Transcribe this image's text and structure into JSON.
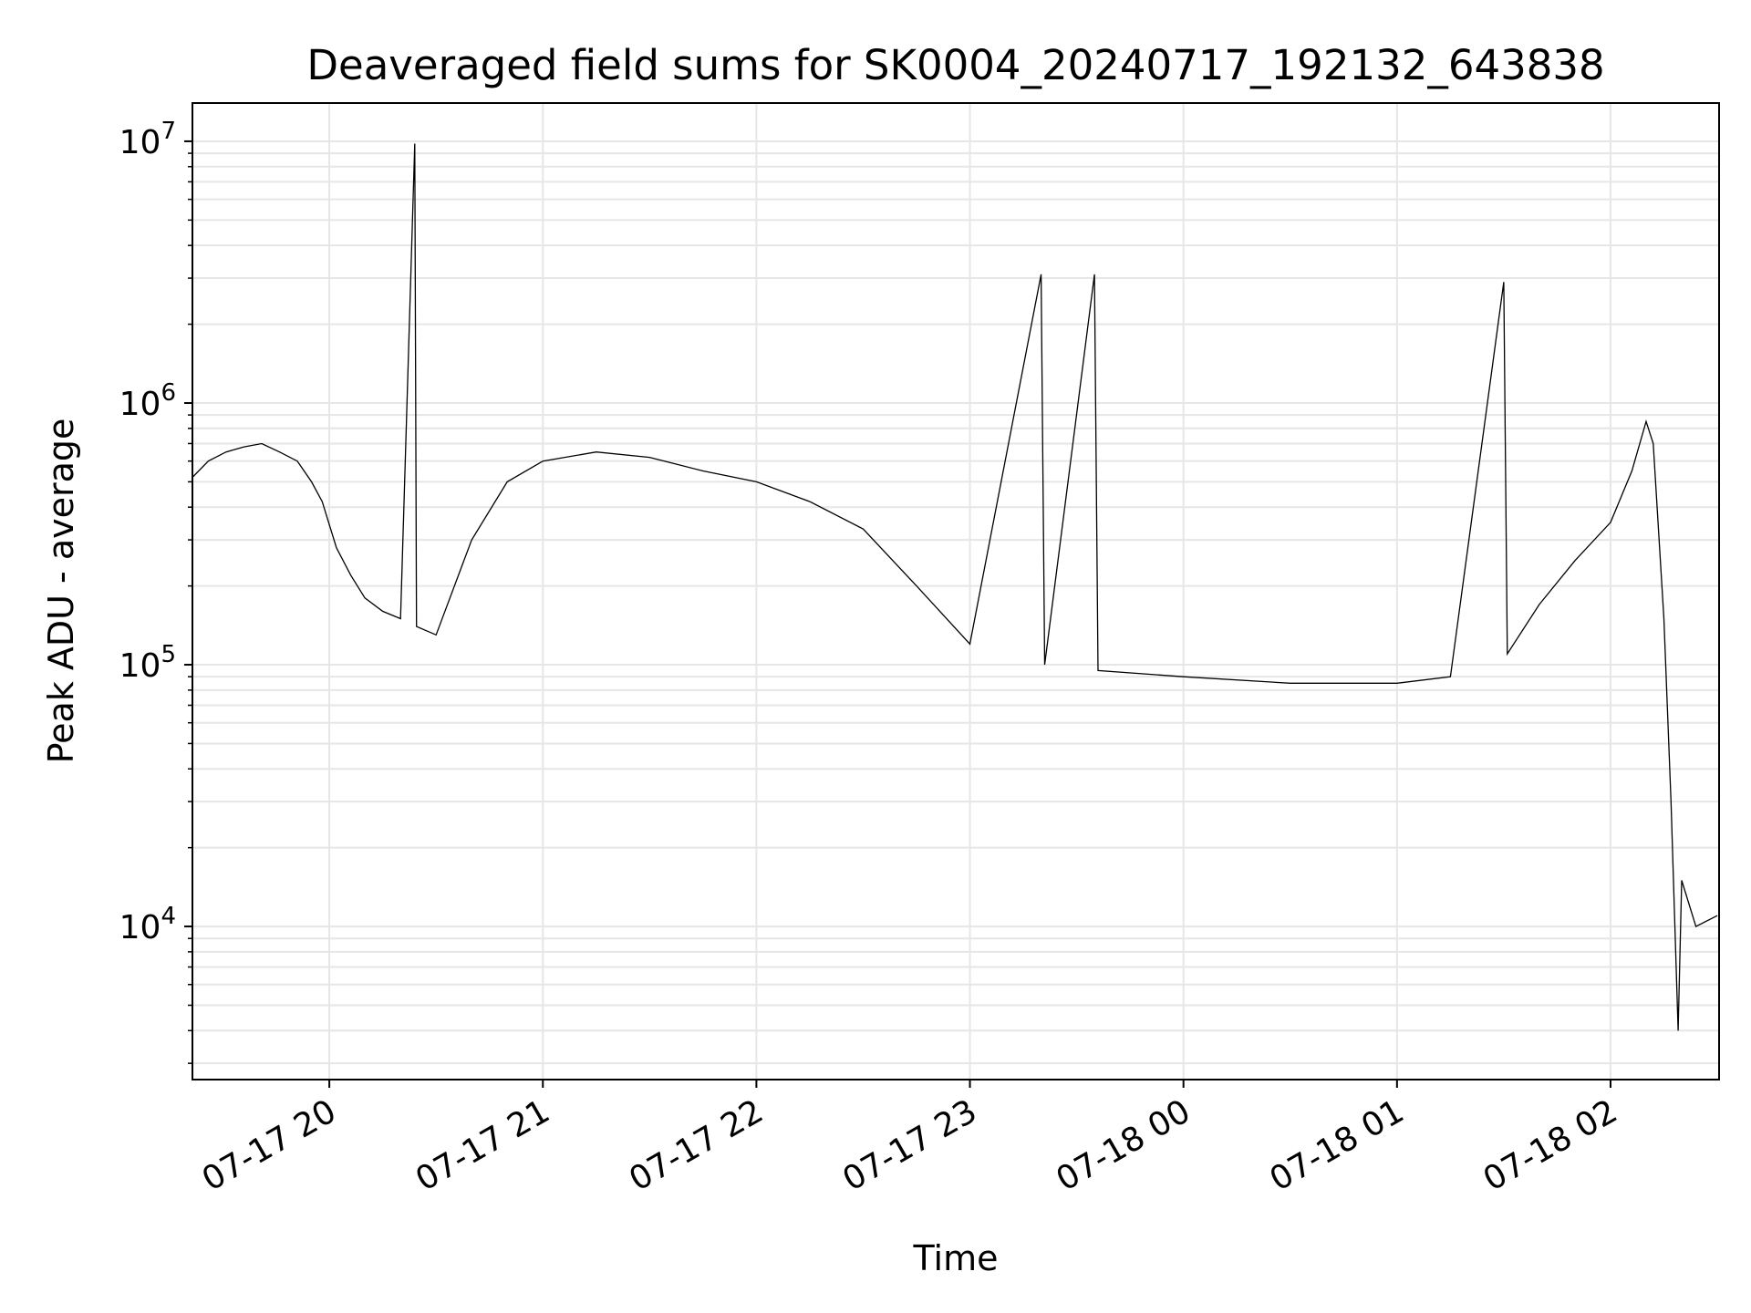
{
  "chart_data": {
    "type": "line",
    "title": "Deaveraged field sums for SK0004_20240717_192132_643838",
    "xlabel": "Time",
    "ylabel": "Peak ADU - average",
    "yscale": "log",
    "ylim": [
      2600,
      14000000
    ],
    "xlim": [
      "2024-07-17 19:21:32",
      "2024-07-18 02:30:30"
    ],
    "x_ticks": [
      {
        "time": "2024-07-17 20:00",
        "label": "07-17 20"
      },
      {
        "time": "2024-07-17 21:00",
        "label": "07-17 21"
      },
      {
        "time": "2024-07-17 22:00",
        "label": "07-17 22"
      },
      {
        "time": "2024-07-17 23:00",
        "label": "07-17 23"
      },
      {
        "time": "2024-07-18 00:00",
        "label": "07-18 00"
      },
      {
        "time": "2024-07-18 01:00",
        "label": "07-18 01"
      },
      {
        "time": "2024-07-18 02:00",
        "label": "07-18 02"
      }
    ],
    "y_ticks": [
      {
        "value": 10000,
        "base": "10",
        "exp": "4"
      },
      {
        "value": 100000,
        "base": "10",
        "exp": "5"
      },
      {
        "value": 1000000,
        "base": "10",
        "exp": "6"
      },
      {
        "value": 10000000,
        "base": "10",
        "exp": "7"
      }
    ],
    "grid": true,
    "line_color": "#000000",
    "series": [
      {
        "points": [
          [
            "2024-07-17 19:21:32",
            520000
          ],
          [
            "2024-07-17 19:26:00",
            600000
          ],
          [
            "2024-07-17 19:31:00",
            650000
          ],
          [
            "2024-07-17 19:36:00",
            680000
          ],
          [
            "2024-07-17 19:41:00",
            700000
          ],
          [
            "2024-07-17 19:46:00",
            650000
          ],
          [
            "2024-07-17 19:51:00",
            600000
          ],
          [
            "2024-07-17 19:55:00",
            500000
          ],
          [
            "2024-07-17 19:58:00",
            420000
          ],
          [
            "2024-07-17 20:02:00",
            280000
          ],
          [
            "2024-07-17 20:06:00",
            220000
          ],
          [
            "2024-07-17 20:10:00",
            180000
          ],
          [
            "2024-07-17 20:15:00",
            160000
          ],
          [
            "2024-07-17 20:20:00",
            150000
          ],
          [
            "2024-07-17 20:24:00",
            9800000
          ],
          [
            "2024-07-17 20:24:30",
            140000
          ],
          [
            "2024-07-17 20:30:00",
            130000
          ],
          [
            "2024-07-17 20:40:00",
            300000
          ],
          [
            "2024-07-17 20:50:00",
            500000
          ],
          [
            "2024-07-17 21:00:00",
            600000
          ],
          [
            "2024-07-17 21:15:00",
            650000
          ],
          [
            "2024-07-17 21:30:00",
            620000
          ],
          [
            "2024-07-17 21:45:00",
            550000
          ],
          [
            "2024-07-17 22:00:00",
            500000
          ],
          [
            "2024-07-17 22:15:00",
            420000
          ],
          [
            "2024-07-17 22:30:00",
            330000
          ],
          [
            "2024-07-17 22:45:00",
            200000
          ],
          [
            "2024-07-17 23:00:00",
            120000
          ],
          [
            "2024-07-17 23:20:00",
            3100000
          ],
          [
            "2024-07-17 23:21:00",
            100000
          ],
          [
            "2024-07-17 23:35:00",
            3100000
          ],
          [
            "2024-07-17 23:36:00",
            95000
          ],
          [
            "2024-07-18 00:00:00",
            90000
          ],
          [
            "2024-07-18 00:30:00",
            85000
          ],
          [
            "2024-07-18 00:45:00",
            85000
          ],
          [
            "2024-07-18 01:00:00",
            85000
          ],
          [
            "2024-07-18 01:15:00",
            90000
          ],
          [
            "2024-07-18 01:30:00",
            2900000
          ],
          [
            "2024-07-18 01:31:00",
            110000
          ],
          [
            "2024-07-18 01:40:00",
            170000
          ],
          [
            "2024-07-18 01:50:00",
            250000
          ],
          [
            "2024-07-18 02:00:00",
            350000
          ],
          [
            "2024-07-18 02:06:00",
            550000
          ],
          [
            "2024-07-18 02:10:00",
            850000
          ],
          [
            "2024-07-18 02:12:00",
            700000
          ],
          [
            "2024-07-18 02:15:00",
            150000
          ],
          [
            "2024-07-18 02:17:00",
            30000
          ],
          [
            "2024-07-18 02:19:00",
            4000
          ],
          [
            "2024-07-18 02:20:00",
            15000
          ],
          [
            "2024-07-18 02:24:00",
            10000
          ],
          [
            "2024-07-18 02:30:00",
            11000
          ]
        ]
      }
    ]
  }
}
